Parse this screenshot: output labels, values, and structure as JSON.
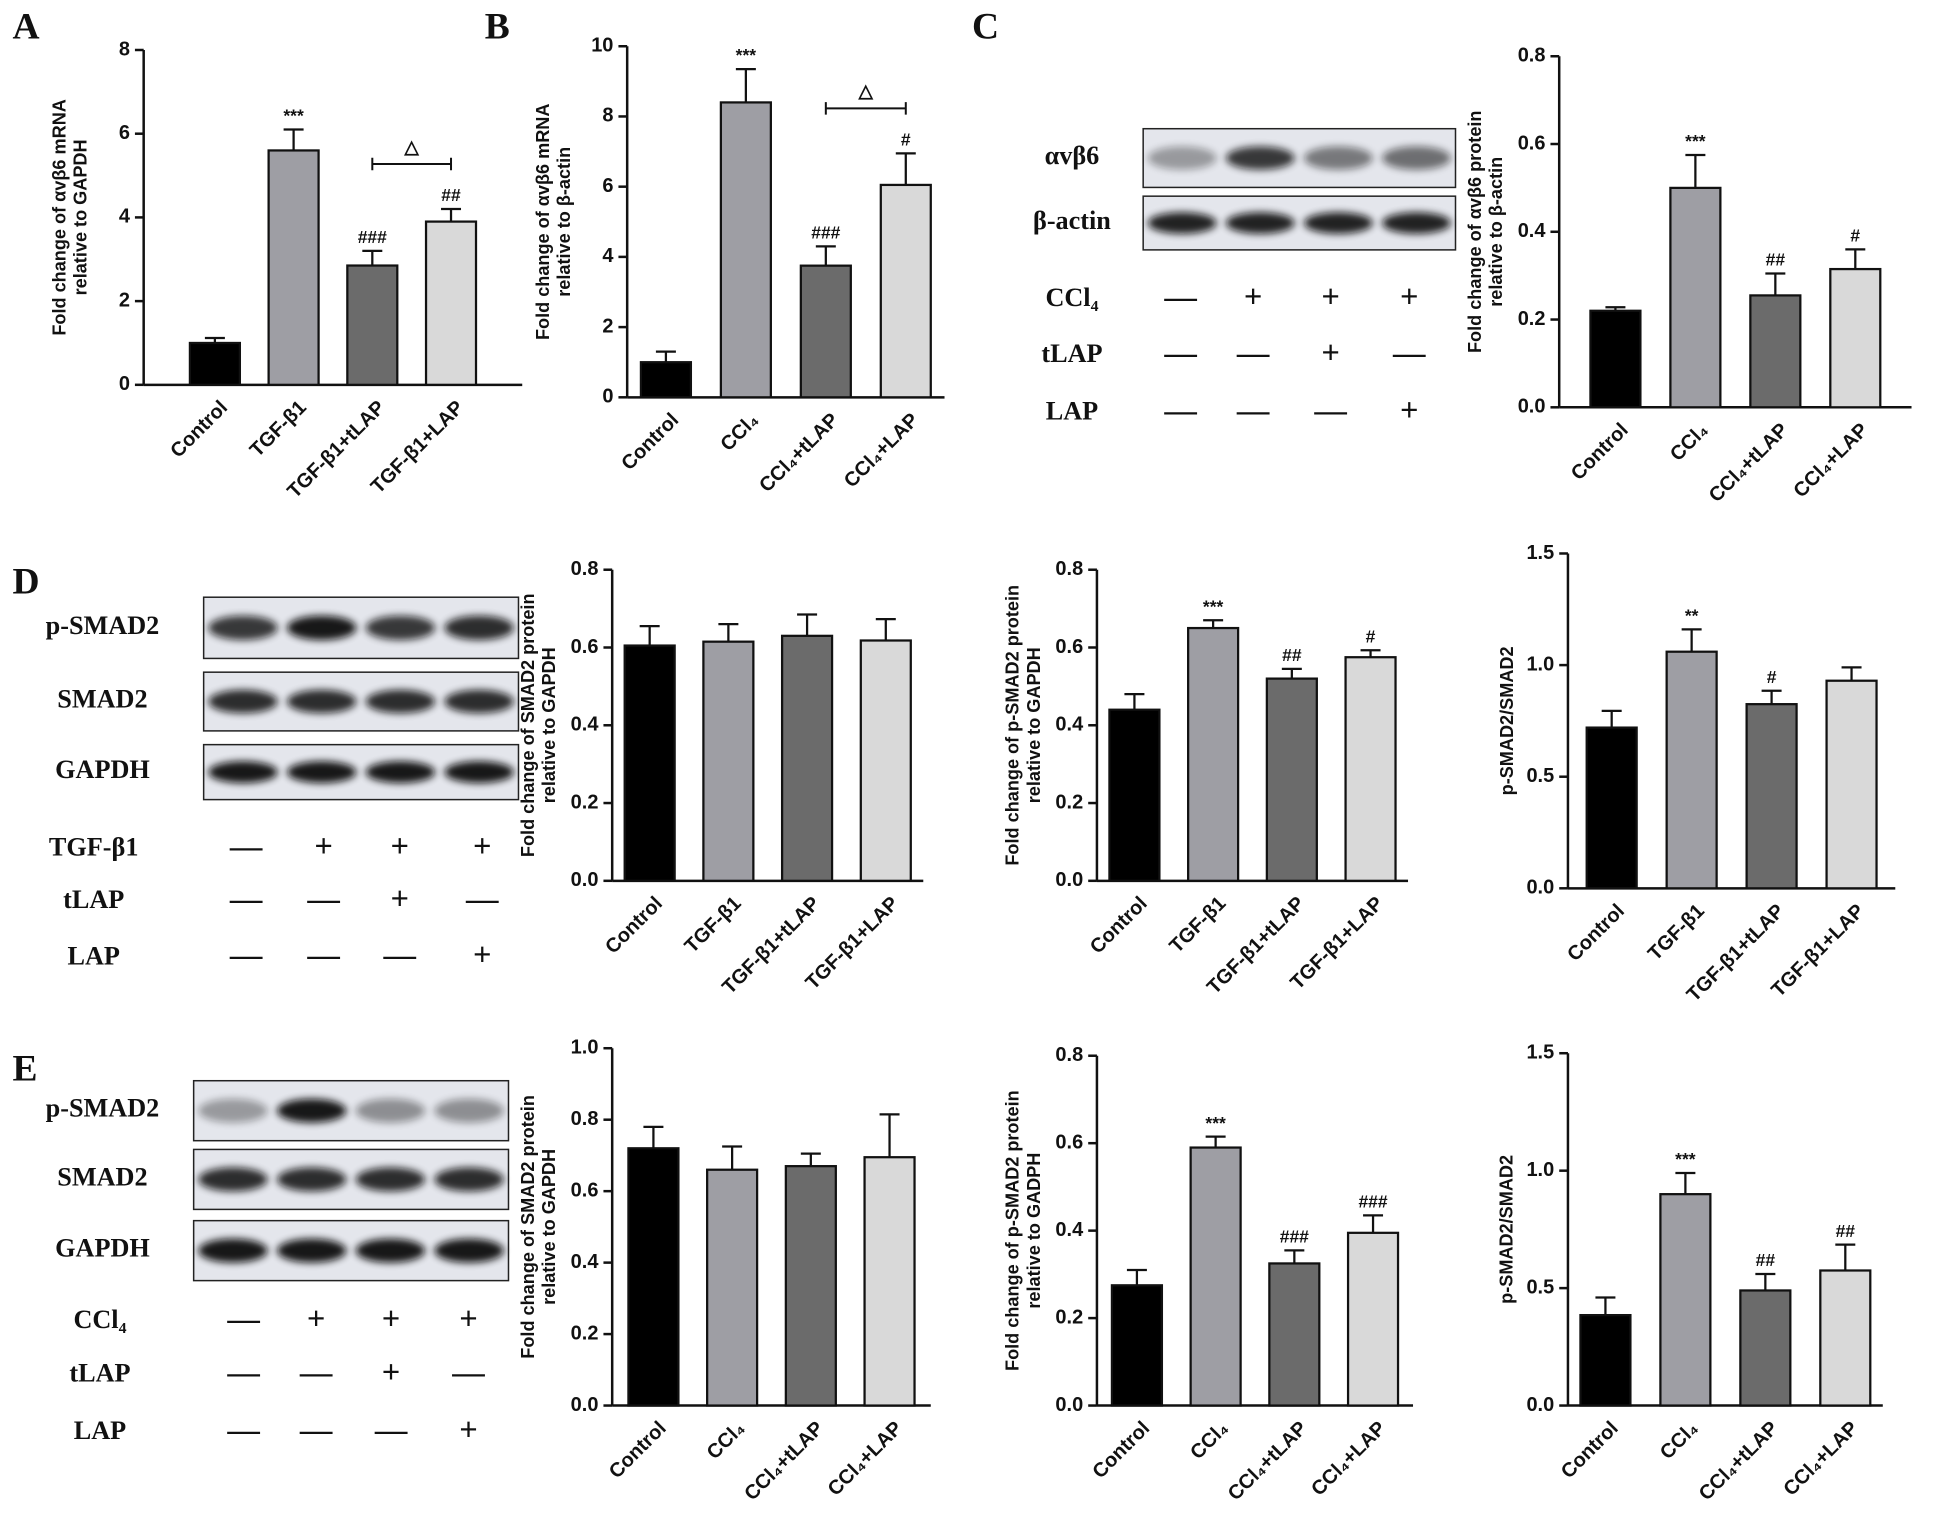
{
  "panel_labels": [
    "A",
    "B",
    "C",
    "D",
    "E"
  ],
  "blots": [
    {
      "rows": [
        "αvβ6",
        "β-actin"
      ],
      "treatments": [
        {
          "label": "CCl₄",
          "signs": [
            "—",
            "+",
            "+",
            "+"
          ]
        },
        {
          "label": "tLAP",
          "signs": [
            "—",
            "—",
            "+",
            "—"
          ]
        },
        {
          "label": "LAP",
          "signs": [
            "—",
            "—",
            "—",
            "+"
          ]
        }
      ]
    },
    {
      "rows": [
        "p-SMAD2",
        "SMAD2",
        "GAPDH"
      ],
      "treatments": [
        {
          "label": "TGF-β1",
          "signs": [
            "—",
            "+",
            "+",
            "+"
          ]
        },
        {
          "label": "tLAP",
          "signs": [
            "—",
            "—",
            "+",
            "—"
          ]
        },
        {
          "label": "LAP",
          "signs": [
            "—",
            "—",
            "—",
            "+"
          ]
        }
      ]
    },
    {
      "rows": [
        "p-SMAD2",
        "SMAD2",
        "GAPDH"
      ],
      "treatments": [
        {
          "label": "CCl₄",
          "signs": [
            "—",
            "+",
            "+",
            "+"
          ]
        },
        {
          "label": "tLAP",
          "signs": [
            "—",
            "—",
            "+",
            "—"
          ]
        },
        {
          "label": "LAP",
          "signs": [
            "—",
            "—",
            "—",
            "+"
          ]
        }
      ]
    }
  ],
  "chart_data": [
    {
      "type": "bar",
      "ylabel": [
        "Fold change of αvβ6 mRNA",
        "relative to GAPDH"
      ],
      "categories": [
        "Control",
        "TGF-β1",
        "TGF-β1+tLAP",
        "TGF-β1+LAP"
      ],
      "values": [
        1.0,
        5.6,
        2.85,
        3.9
      ],
      "errors": [
        0.12,
        0.5,
        0.35,
        0.3
      ],
      "annotations": [
        null,
        "***",
        "###",
        "##"
      ],
      "bracket": {
        "between": [
          2,
          3
        ],
        "label": "△"
      },
      "colors": [
        "#000000",
        "#9e9ea4",
        "#6b6b6b",
        "#d9d9d9"
      ],
      "ylim": [
        0,
        8
      ],
      "yticks": [
        0,
        2,
        4,
        6,
        8
      ]
    },
    {
      "type": "bar",
      "ylabel": [
        "Fold change of αvβ6 mRNA",
        "relative to β-actin"
      ],
      "categories": [
        "Control",
        "CCl₄",
        "CCl₄+tLAP",
        "CCl₄+LAP"
      ],
      "values": [
        1.0,
        8.4,
        3.75,
        6.05
      ],
      "errors": [
        0.3,
        0.95,
        0.55,
        0.9
      ],
      "annotations": [
        null,
        "***",
        "###",
        "#"
      ],
      "bracket": {
        "between": [
          2,
          3
        ],
        "label": "△"
      },
      "colors": [
        "#000000",
        "#9e9ea4",
        "#6b6b6b",
        "#d9d9d9"
      ],
      "ylim": [
        0,
        10
      ],
      "yticks": [
        0,
        2,
        4,
        6,
        8,
        10
      ]
    },
    {
      "type": "bar",
      "ylabel": [
        "Fold change of αvβ6 protein",
        "relative to β-actin"
      ],
      "categories": [
        "Control",
        "CCl₄",
        "CCl₄+tLAP",
        "CCl₄+LAP"
      ],
      "values": [
        0.22,
        0.5,
        0.255,
        0.315
      ],
      "errors": [
        0.008,
        0.075,
        0.05,
        0.045
      ],
      "annotations": [
        null,
        "***",
        "##",
        "#"
      ],
      "colors": [
        "#000000",
        "#9e9ea4",
        "#6b6b6b",
        "#d9d9d9"
      ],
      "ylim": [
        0,
        0.8
      ],
      "yticks": [
        {
          "value": 0,
          "label": "0.0"
        },
        0.2,
        0.4,
        0.6,
        0.8
      ]
    },
    {
      "type": "bar",
      "ylabel": [
        "Fold change of SMAD2 protein",
        "relative to GAPDH"
      ],
      "categories": [
        "Control",
        "TGF-β1",
        "TGF-β1+tLAP",
        "TGF-β1+LAP"
      ],
      "values": [
        0.605,
        0.615,
        0.63,
        0.618
      ],
      "errors": [
        0.05,
        0.045,
        0.055,
        0.055
      ],
      "annotations": [
        null,
        null,
        null,
        null
      ],
      "colors": [
        "#000000",
        "#9e9ea4",
        "#6b6b6b",
        "#d9d9d9"
      ],
      "ylim": [
        0,
        0.8
      ],
      "yticks": [
        {
          "value": 0,
          "label": "0.0"
        },
        0.2,
        0.4,
        0.6,
        0.8
      ]
    },
    {
      "type": "bar",
      "ylabel": [
        "Fold change of p-SMAD2 protein",
        "relative to GAPDH"
      ],
      "categories": [
        "Control",
        "TGF-β1",
        "TGF-β1+tLAP",
        "TGF-β1+LAP"
      ],
      "values": [
        0.44,
        0.65,
        0.52,
        0.575
      ],
      "errors": [
        0.04,
        0.02,
        0.025,
        0.018
      ],
      "annotations": [
        null,
        "***",
        "##",
        "#"
      ],
      "colors": [
        "#000000",
        "#9e9ea4",
        "#6b6b6b",
        "#d9d9d9"
      ],
      "ylim": [
        0,
        0.8
      ],
      "yticks": [
        {
          "value": 0,
          "label": "0.0"
        },
        0.2,
        0.4,
        0.6,
        0.8
      ]
    },
    {
      "type": "bar",
      "ylabel": [
        "p-SMAD2/SMAD2"
      ],
      "categories": [
        "Control",
        "TGF-β1",
        "TGF-β1+tLAP",
        "TGF-β1+LAP"
      ],
      "values": [
        0.72,
        1.06,
        0.825,
        0.93
      ],
      "errors": [
        0.075,
        0.1,
        0.06,
        0.06
      ],
      "annotations": [
        null,
        "**",
        "#",
        null
      ],
      "colors": [
        "#000000",
        "#9e9ea4",
        "#6b6b6b",
        "#d9d9d9"
      ],
      "ylim": [
        0,
        1.5
      ],
      "yticks": [
        {
          "value": 0,
          "label": "0.0"
        },
        0.5,
        {
          "value": 1,
          "label": "1.0"
        },
        1.5
      ]
    },
    {
      "type": "bar",
      "ylabel": [
        "Fold change of SMAD2 protein",
        "relative to GAPDH"
      ],
      "categories": [
        "Control",
        "CCl₄",
        "CCl₄+tLAP",
        "CCl₄+LAP"
      ],
      "values": [
        0.72,
        0.66,
        0.67,
        0.695
      ],
      "errors": [
        0.06,
        0.065,
        0.035,
        0.12
      ],
      "annotations": [
        null,
        null,
        null,
        null
      ],
      "colors": [
        "#000000",
        "#9e9ea4",
        "#6b6b6b",
        "#d9d9d9"
      ],
      "ylim": [
        0,
        1.0
      ],
      "yticks": [
        {
          "value": 0,
          "label": "0.0"
        },
        0.2,
        0.4,
        0.6,
        0.8,
        {
          "value": 1,
          "label": "1.0"
        }
      ]
    },
    {
      "type": "bar",
      "ylabel": [
        "Fold change of p-SMAD2 protein",
        "relative to GADPH"
      ],
      "categories": [
        "Control",
        "CCl₄",
        "CCl₄+tLAP",
        "CCl₄+LAP"
      ],
      "values": [
        0.275,
        0.59,
        0.325,
        0.395
      ],
      "errors": [
        0.035,
        0.025,
        0.03,
        0.04
      ],
      "annotations": [
        null,
        "***",
        "###",
        "###"
      ],
      "colors": [
        "#000000",
        "#9e9ea4",
        "#6b6b6b",
        "#d9d9d9"
      ],
      "ylim": [
        0,
        0.8
      ],
      "yticks": [
        {
          "value": 0,
          "label": "0.0"
        },
        0.2,
        0.4,
        0.6,
        0.8
      ]
    },
    {
      "type": "bar",
      "ylabel": [
        "p-SMAD2/SMAD2"
      ],
      "categories": [
        "Control",
        "CCl₄",
        "CCl₄+tLAP",
        "CCl₄+LAP"
      ],
      "values": [
        0.385,
        0.9,
        0.49,
        0.575
      ],
      "errors": [
        0.075,
        0.09,
        0.07,
        0.11
      ],
      "annotations": [
        null,
        "***",
        "##",
        "##"
      ],
      "colors": [
        "#000000",
        "#9e9ea4",
        "#6b6b6b",
        "#d9d9d9"
      ],
      "ylim": [
        0,
        1.5
      ],
      "yticks": [
        {
          "value": 0,
          "label": "0.0"
        },
        0.5,
        {
          "value": 1,
          "label": "1.0"
        },
        1.5
      ]
    }
  ]
}
